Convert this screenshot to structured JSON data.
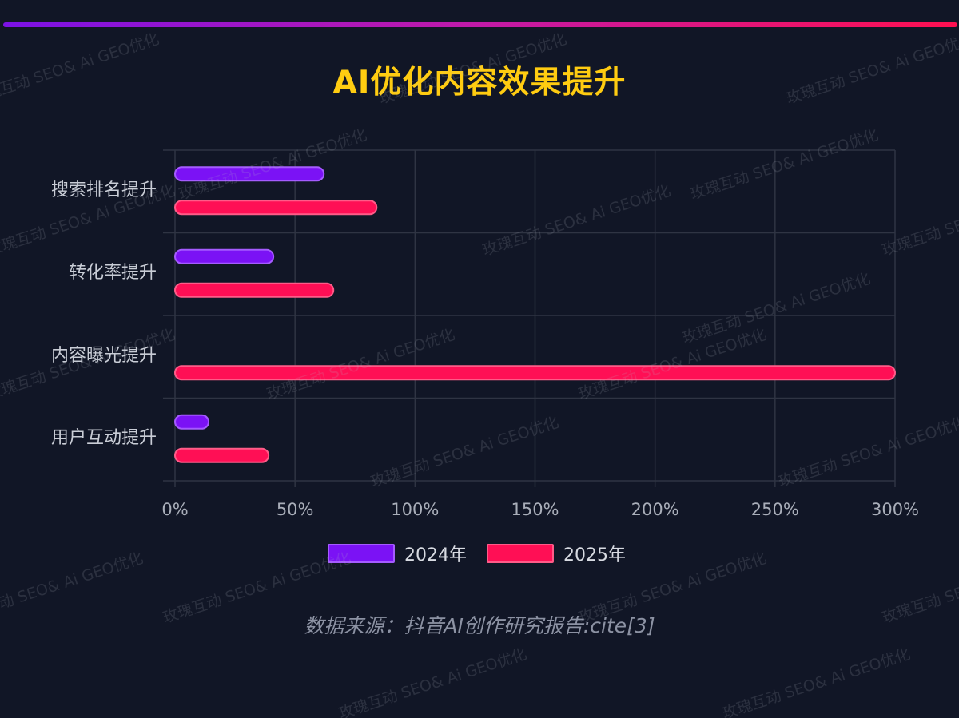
{
  "title": "AI优化内容效果提升",
  "source": "数据来源：抖音AI创作研究报告:cite[3]",
  "watermark": "玫瑰互动 SEO& Ai GEO优化",
  "colors": {
    "background": "#111626",
    "title": "#ffcc11",
    "series_2024": "#7b12f5",
    "series_2025": "#ff0f55"
  },
  "chart_data": {
    "type": "bar",
    "orientation": "horizontal",
    "categories": [
      "搜索排名提升",
      "转化率提升",
      "内容曝光提升",
      "用户互动提升"
    ],
    "series": [
      {
        "name": "2024年",
        "values": [
          62,
          41,
          0,
          14
        ]
      },
      {
        "name": "2025年",
        "values": [
          84,
          66,
          300,
          39
        ]
      }
    ],
    "xlim": [
      0,
      300
    ],
    "xticks": [
      "0%",
      "50%",
      "100%",
      "150%",
      "200%",
      "250%",
      "300%"
    ],
    "grid": true,
    "legend_position": "bottom"
  }
}
